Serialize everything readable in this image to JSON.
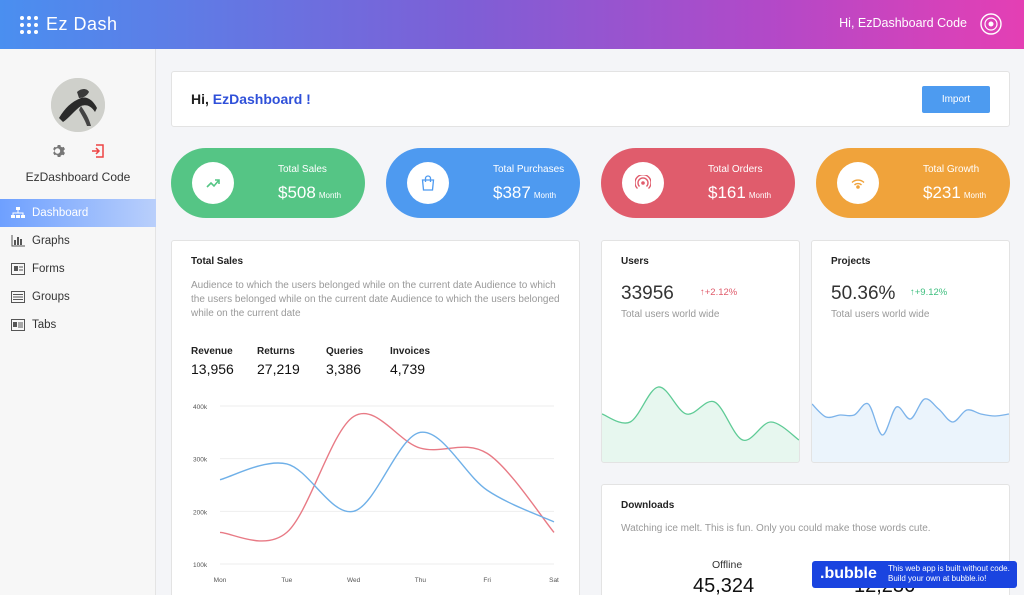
{
  "app": {
    "name": "Ez Dash",
    "greeting": "Hi, EzDashboard Code"
  },
  "sidebar": {
    "user_name": "EzDashboard Code",
    "items": [
      {
        "label": "Dashboard",
        "icon": "sitemap-icon"
      },
      {
        "label": "Graphs",
        "icon": "bar-chart-icon"
      },
      {
        "label": "Forms",
        "icon": "form-icon"
      },
      {
        "label": "Groups",
        "icon": "list-icon"
      },
      {
        "label": "Tabs",
        "icon": "tabs-icon"
      }
    ]
  },
  "welcome": {
    "hi": "Hi, ",
    "name": "EzDashboard !",
    "import_label": "Import"
  },
  "stats": [
    {
      "label": "Total Sales",
      "value": "$508",
      "unit": "Month",
      "color": "#55c585",
      "icon": "trend-up-icon"
    },
    {
      "label": "Total Purchases",
      "value": "$387",
      "unit": "Month",
      "color": "#4e9af0",
      "icon": "shopping-bag-icon"
    },
    {
      "label": "Total Orders",
      "value": "$161",
      "unit": "Month",
      "color": "#e05c6c",
      "icon": "broadcast-icon"
    },
    {
      "label": "Total Growth",
      "value": "$231",
      "unit": "Month",
      "color": "#f0a33b",
      "icon": "signal-icon"
    }
  ],
  "total_sales": {
    "title": "Total Sales",
    "description": "Audience to which the users belonged while on the current date Audience to which the users belonged while on the current date Audience to which the users belonged while on the current date",
    "metrics": [
      {
        "label": "Revenue",
        "value": "13,956"
      },
      {
        "label": "Returns",
        "value": "27,219"
      },
      {
        "label": "Queries",
        "value": "3,386"
      },
      {
        "label": "Invoices",
        "value": "4,739"
      }
    ]
  },
  "users": {
    "title": "Users",
    "value": "33956",
    "delta": "+2.12%",
    "sub": "Total users world wide",
    "delta_color": "#e05c6c"
  },
  "projects": {
    "title": "Projects",
    "value": "50.36%",
    "delta": "+9.12%",
    "sub": "Total users world wide",
    "delta_color": "#3fbf7f"
  },
  "downloads": {
    "title": "Downloads",
    "description": "Watching ice melt. This is fun. Only you could make those words cute.",
    "offline_label": "Offline",
    "offline_value": "45,324",
    "second_value": "12,236"
  },
  "bubble": {
    "logo": ".bubble",
    "line1": "This web app is built without code.",
    "line2": "Build your own at bubble.io!"
  },
  "chart_data": [
    {
      "type": "line",
      "title": "",
      "x": [
        "Mon",
        "Tue",
        "Wed",
        "Thu",
        "Fri",
        "Sat"
      ],
      "ylim": [
        100,
        400
      ],
      "yticks": [
        "100k",
        "200k",
        "300k",
        "400k"
      ],
      "series": [
        {
          "color": "#e87a85",
          "values": [
            160,
            160,
            380,
            320,
            310,
            160
          ]
        },
        {
          "color": "#6fb0e8",
          "values": [
            260,
            290,
            200,
            350,
            240,
            180
          ]
        }
      ]
    },
    {
      "type": "area",
      "color": "#5fcb96",
      "values": [
        48,
        40,
        75,
        48,
        60,
        22,
        40,
        22
      ]
    },
    {
      "type": "area",
      "color": "#7cb3ea",
      "values": [
        58,
        45,
        47,
        47,
        58,
        27,
        55,
        43,
        63,
        53,
        40,
        52,
        48,
        46,
        48
      ]
    }
  ]
}
